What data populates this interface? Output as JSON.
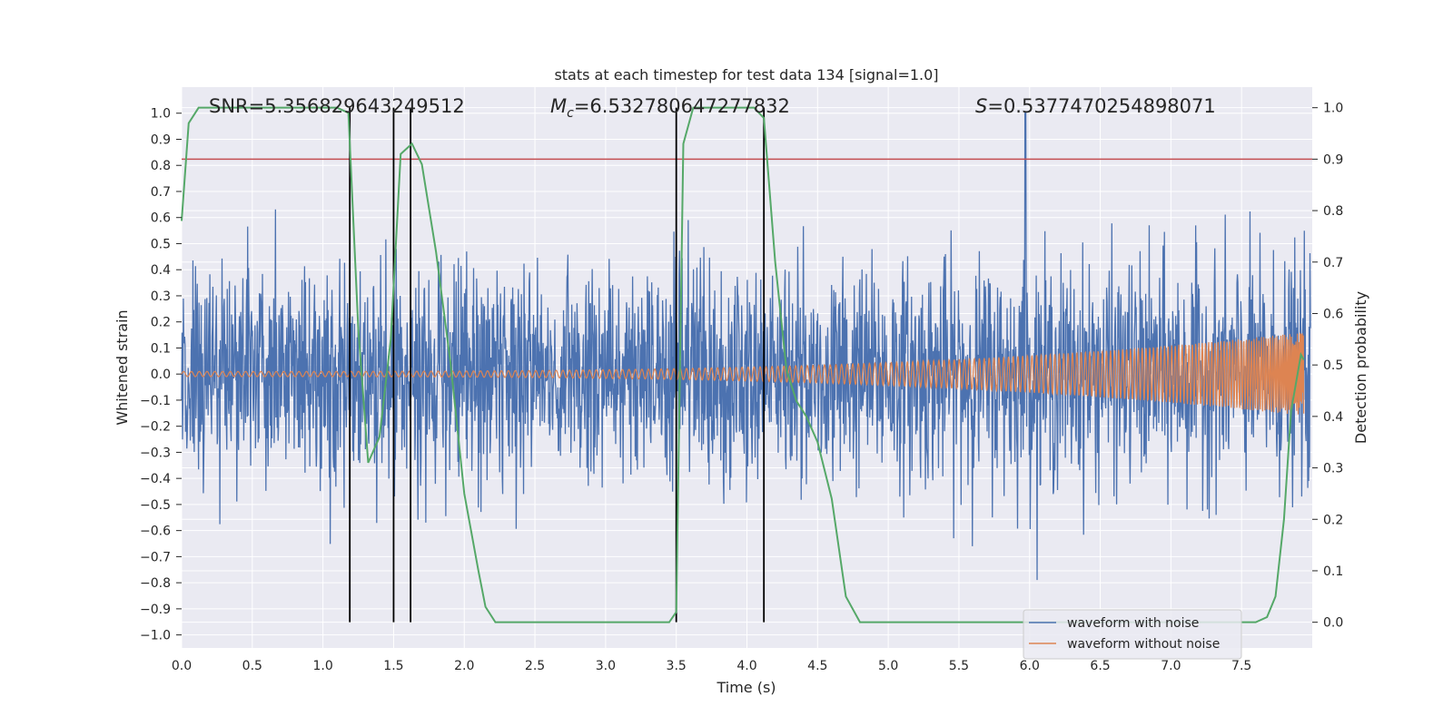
{
  "chart_data": {
    "type": "line",
    "title": "stats at each timestep for test data 134 [signal=1.0]",
    "xlabel": "Time (s)",
    "ylabel_left": "Whitened strain",
    "ylabel_right": "Detection probability",
    "xlim": [
      0.0,
      8.0
    ],
    "ylim_left": [
      -1.05,
      1.1
    ],
    "ylim_right": [
      -0.05,
      1.04
    ],
    "x_ticks": [
      "0.0",
      "0.5",
      "1.0",
      "1.5",
      "2.0",
      "2.5",
      "3.0",
      "3.5",
      "4.0",
      "4.5",
      "5.0",
      "5.5",
      "6.0",
      "6.5",
      "7.0",
      "7.5"
    ],
    "y_left_ticks": [
      "-1.0",
      "-0.9",
      "-0.8",
      "-0.7",
      "-0.6",
      "-0.5",
      "-0.4",
      "-0.3",
      "-0.2",
      "-0.1",
      "0.0",
      "0.1",
      "0.2",
      "0.3",
      "0.4",
      "0.5",
      "0.6",
      "0.7",
      "0.8",
      "0.9",
      "1.0"
    ],
    "y_right_ticks": [
      "0.0",
      "0.1",
      "0.2",
      "0.3",
      "0.4",
      "0.5",
      "0.6",
      "0.7",
      "0.8",
      "0.9",
      "1.0"
    ],
    "grid": true,
    "legend_position": "lower-right",
    "annotations": {
      "snr_text": "SNR=5.356829643249512",
      "mc_text": "=6.532780647277832",
      "mc_symbol": "M",
      "mc_subscript": "c",
      "s_text": "=0.5377470254898071",
      "s_symbol": "S"
    },
    "threshold_line": {
      "axis": "right",
      "value": 0.9,
      "color": "#c44e52"
    },
    "vertical_lines_x": [
      1.19,
      1.5,
      1.62,
      3.5,
      4.12
    ],
    "series": [
      {
        "name": "waveform with noise",
        "axis": "left",
        "color": "#4c72b0",
        "kind": "noise",
        "amplitude_envelope": 0.6,
        "peak": 1.0,
        "peak_x": 5.97
      },
      {
        "name": "waveform without noise",
        "axis": "left",
        "color": "#dd8452",
        "kind": "chirp",
        "start_amplitude": 0.01,
        "end_amplitude": 0.16,
        "end_x": 7.94
      },
      {
        "name": "",
        "axis": "right",
        "color": "#55a868",
        "kind": "probability",
        "x": [
          0.0,
          0.05,
          0.12,
          0.3,
          0.6,
          0.9,
          1.1,
          1.18,
          1.25,
          1.32,
          1.4,
          1.48,
          1.55,
          1.63,
          1.7,
          1.8,
          1.9,
          2.0,
          2.1,
          2.15,
          2.22,
          2.3,
          2.5,
          3.0,
          3.3,
          3.45,
          3.5,
          3.55,
          3.62,
          3.7,
          3.85,
          4.05,
          4.12,
          4.2,
          4.28,
          4.35,
          4.42,
          4.5,
          4.6,
          4.7,
          4.8,
          5.0,
          6.0,
          7.0,
          7.5,
          7.6,
          7.68,
          7.74,
          7.8,
          7.85,
          7.92,
          7.94
        ],
        "y": [
          0.78,
          0.97,
          1.0,
          1.0,
          1.0,
          1.0,
          1.0,
          0.99,
          0.57,
          0.31,
          0.36,
          0.55,
          0.91,
          0.93,
          0.89,
          0.72,
          0.51,
          0.25,
          0.1,
          0.03,
          0.0,
          0.0,
          0.0,
          0.0,
          0.0,
          0.0,
          0.02,
          0.93,
          1.0,
          1.0,
          1.0,
          1.0,
          0.98,
          0.7,
          0.49,
          0.43,
          0.4,
          0.35,
          0.24,
          0.05,
          0.0,
          0.0,
          0.0,
          0.0,
          0.0,
          0.0,
          0.01,
          0.05,
          0.2,
          0.41,
          0.52,
          0.51
        ]
      }
    ]
  },
  "colors": {
    "background": "#eaeaf2",
    "grid": "#ffffff",
    "vertical_line": "#000000"
  }
}
